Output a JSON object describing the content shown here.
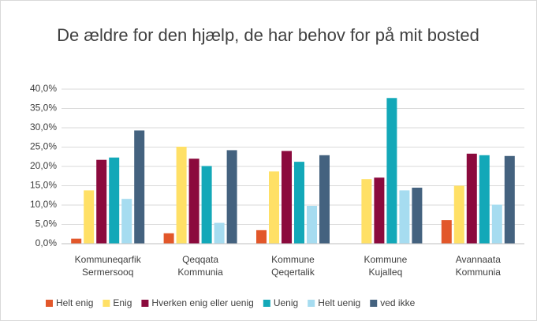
{
  "chart_data": {
    "type": "bar",
    "title": "De ældre for den hjælp, de har behov for på mit bosted",
    "categories": [
      "Kommuneqarfik Sermersooq",
      "Qeqqata Kommunia",
      "Kommune Qeqertalik",
      "Kommune Kujalleq",
      "Avannaata Kommunia"
    ],
    "series": [
      {
        "name": "Helt enig",
        "color": "#e2572a",
        "values": [
          1.3,
          2.7,
          3.5,
          0,
          6.1
        ]
      },
      {
        "name": "Enig",
        "color": "#ffe066",
        "values": [
          13.8,
          25.1,
          18.7,
          16.7,
          15.0
        ]
      },
      {
        "name": "Hverken enig eller uenig",
        "color": "#8b0a3d",
        "values": [
          21.7,
          22.0,
          24.0,
          17.1,
          23.3
        ]
      },
      {
        "name": "Uenig",
        "color": "#13a8b8",
        "values": [
          22.3,
          20.1,
          21.2,
          37.7,
          22.9
        ]
      },
      {
        "name": "Helt uenig",
        "color": "#a6dcf0",
        "values": [
          11.6,
          5.4,
          9.8,
          13.8,
          10.1
        ]
      },
      {
        "name": "ved ikke",
        "color": "#44627f",
        "values": [
          29.3,
          24.2,
          22.9,
          14.5,
          22.7
        ]
      }
    ],
    "ylim": [
      0,
      40
    ],
    "yticks": [
      {
        "value": 0,
        "label": "0,0%"
      },
      {
        "value": 5,
        "label": "5,0%"
      },
      {
        "value": 10,
        "label": "10,0%"
      },
      {
        "value": 15,
        "label": "15,0%"
      },
      {
        "value": 20,
        "label": "20,0%"
      },
      {
        "value": 25,
        "label": "25,0%"
      },
      {
        "value": 30,
        "label": "30,0%"
      },
      {
        "value": 35,
        "label": "35,0%"
      },
      {
        "value": 40,
        "label": "40,0%"
      }
    ],
    "grid": true,
    "legend": "bottom"
  }
}
